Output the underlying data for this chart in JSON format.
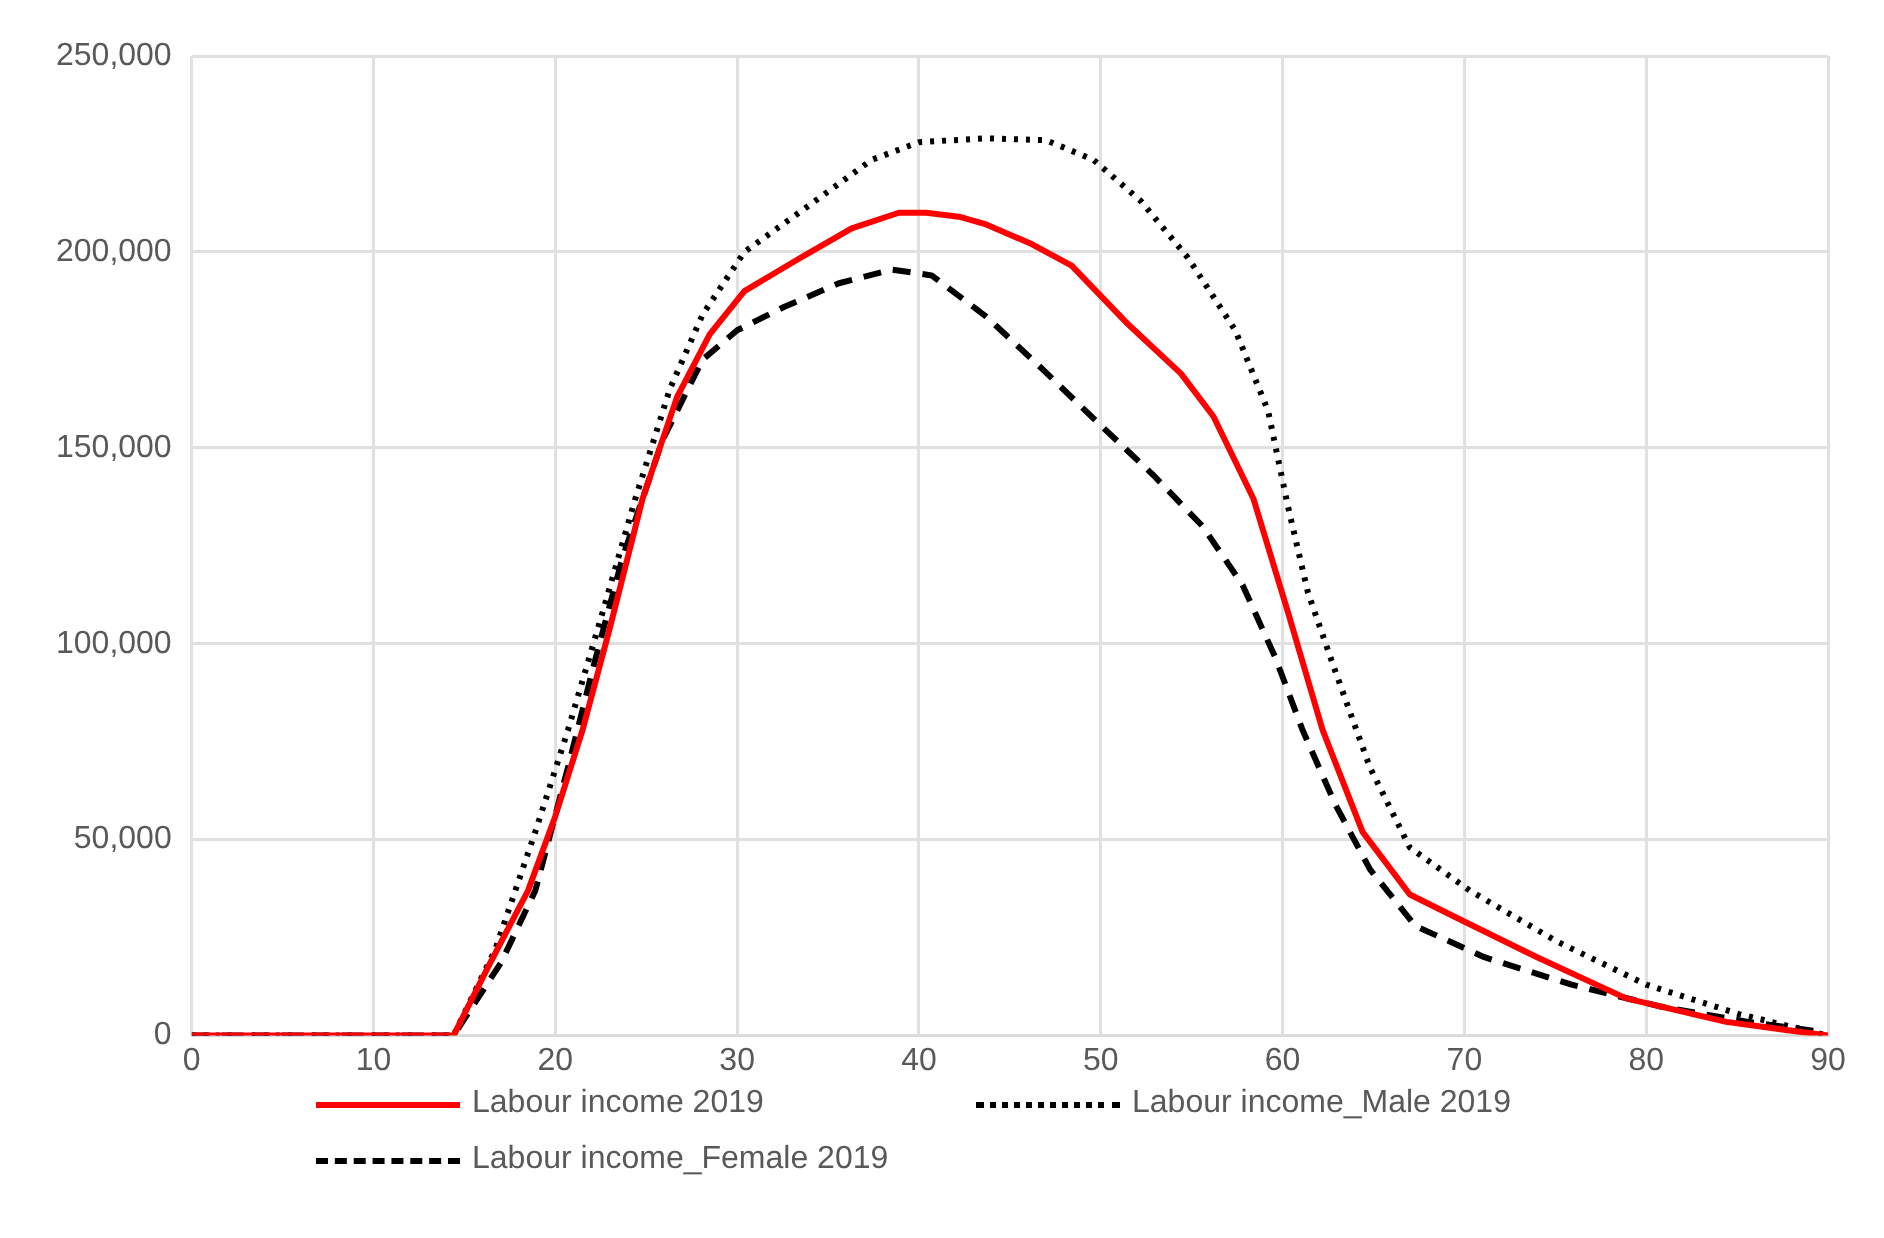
{
  "chart_data": {
    "type": "line",
    "xlim": [
      0,
      90
    ],
    "xticks": [
      0,
      10,
      20,
      30,
      40,
      50,
      60,
      70,
      80,
      90
    ],
    "ylim": [
      0,
      250000
    ],
    "yticks": [
      {
        "value": 0,
        "label": "0"
      },
      {
        "value": 50000,
        "label": "50,000"
      },
      {
        "value": 100000,
        "label": "100,000"
      },
      {
        "value": 150000,
        "label": "150,000"
      },
      {
        "value": 200000,
        "label": "200,000"
      },
      {
        "value": 250000,
        "label": "250,000"
      }
    ],
    "grid": true,
    "legend": "bottom",
    "marker": "none",
    "series": [
      {
        "name": "Labour income 2019",
        "color": "#ff0000",
        "line_style": "solid",
        "x": [
          0,
          14,
          14.4,
          16.3,
          18.5,
          20,
          21.5,
          23,
          24.8,
          26.7,
          28.5,
          30.4,
          33.3,
          36.3,
          38.9,
          40.4,
          42.2,
          43.7,
          46.2,
          48.4,
          51.4,
          54.4,
          56.2,
          58.4,
          60.3,
          62.2,
          64.4,
          67,
          69.6,
          74,
          78.9,
          84.4,
          90
        ],
        "values": [
          0,
          0,
          0,
          17500,
          37000,
          56000,
          78000,
          104000,
          137000,
          163000,
          179000,
          190000,
          198000,
          206000,
          210000,
          210000,
          209000,
          207000,
          202000,
          196500,
          182000,
          169000,
          158000,
          137000,
          108000,
          78000,
          52000,
          36000,
          30000,
          20000,
          9500,
          3500,
          0
        ]
      },
      {
        "name": "Labour income_Male 2019",
        "color": "#000000",
        "line_style": "dotted",
        "x": [
          0,
          14,
          14.4,
          16.7,
          18.9,
          20.7,
          22.6,
          24.4,
          26.3,
          28.1,
          30.4,
          33.7,
          37.4,
          40,
          43.7,
          47,
          49.6,
          52.2,
          54.8,
          57.4,
          59.2,
          60.3,
          61.4,
          62.9,
          64.8,
          67,
          70.3,
          75.1,
          80,
          85.1,
          90
        ],
        "values": [
          0,
          0,
          0,
          22000,
          52000,
          78000,
          108000,
          137000,
          165000,
          184000,
          200000,
          211000,
          223500,
          228000,
          229000,
          228500,
          223500,
          213000,
          198500,
          180000,
          159500,
          135000,
          113000,
          93000,
          68500,
          48000,
          37000,
          24000,
          13000,
          5500,
          0
        ]
      },
      {
        "name": "Labour income_Female 2019",
        "color": "#000000",
        "line_style": "dashed",
        "x": [
          0,
          14,
          14.4,
          17,
          18.9,
          20.7,
          22.2,
          23.7,
          25.9,
          28.1,
          30,
          32.6,
          35.6,
          38.5,
          40.7,
          43.7,
          46.7,
          49.6,
          52.9,
          55.6,
          57.8,
          59.6,
          61.1,
          62.9,
          64.8,
          67.3,
          71.1,
          75.9,
          80.7,
          85.6,
          89.6
        ],
        "values": [
          0,
          0,
          0,
          18500,
          37000,
          68500,
          96000,
          122000,
          152000,
          172500,
          180000,
          186000,
          192000,
          195500,
          194000,
          183500,
          170500,
          157500,
          143000,
          130000,
          115000,
          96500,
          78000,
          59000,
          42500,
          28000,
          20000,
          13000,
          7500,
          3500,
          1000
        ]
      }
    ]
  }
}
